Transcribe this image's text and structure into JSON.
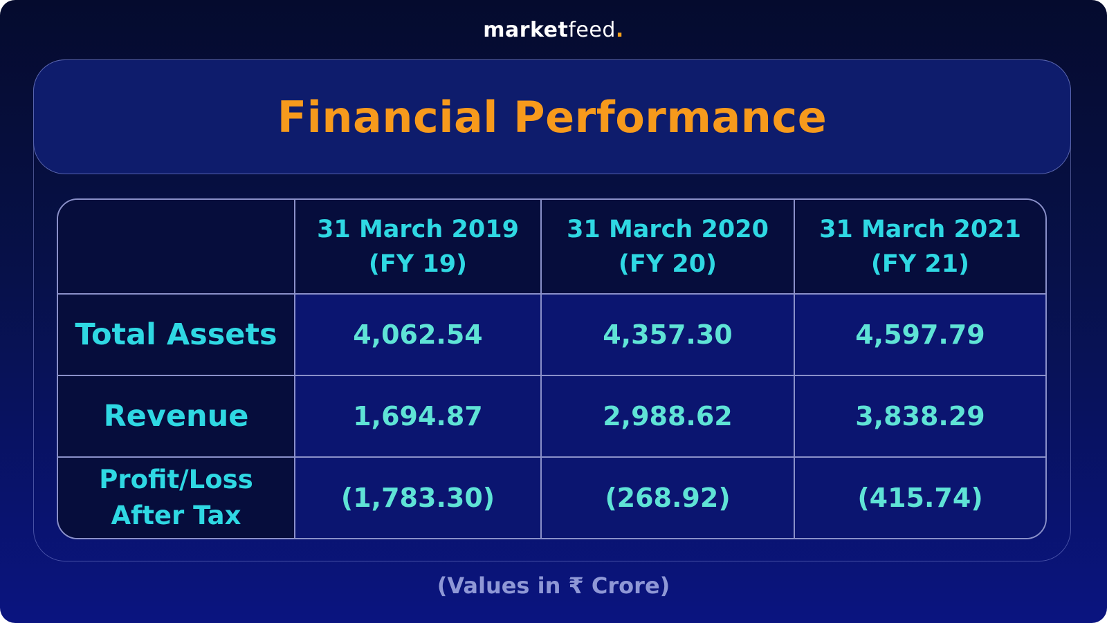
{
  "brand": {
    "name_bold": "market",
    "name_light": "feed",
    "name_dot": "."
  },
  "title": "Financial Performance",
  "table": {
    "columns": [
      "",
      "31 March 2019\n(FY 19)",
      "31 March 2020\n(FY 20)",
      "31 March 2021\n(FY 21)"
    ],
    "rows": [
      {
        "label": "Total Assets",
        "values": [
          "4,062.54",
          "4,357.30",
          "4,597.79"
        ]
      },
      {
        "label": "Revenue",
        "values": [
          "1,694.87",
          "2,988.62",
          "3,838.29"
        ]
      },
      {
        "label": "Profit/Loss\nAfter Tax",
        "values": [
          "(1,783.30)",
          "(268.92)",
          "(415.74)"
        ]
      }
    ]
  },
  "footnote": "(Values in ₹ Crore)",
  "colors": {
    "accent_title": "#f79a1c",
    "accent_text": "#2fd8e3",
    "value_text": "#5fe3d6",
    "background_top": "#050b2e",
    "background_bottom": "#0a1480"
  }
}
